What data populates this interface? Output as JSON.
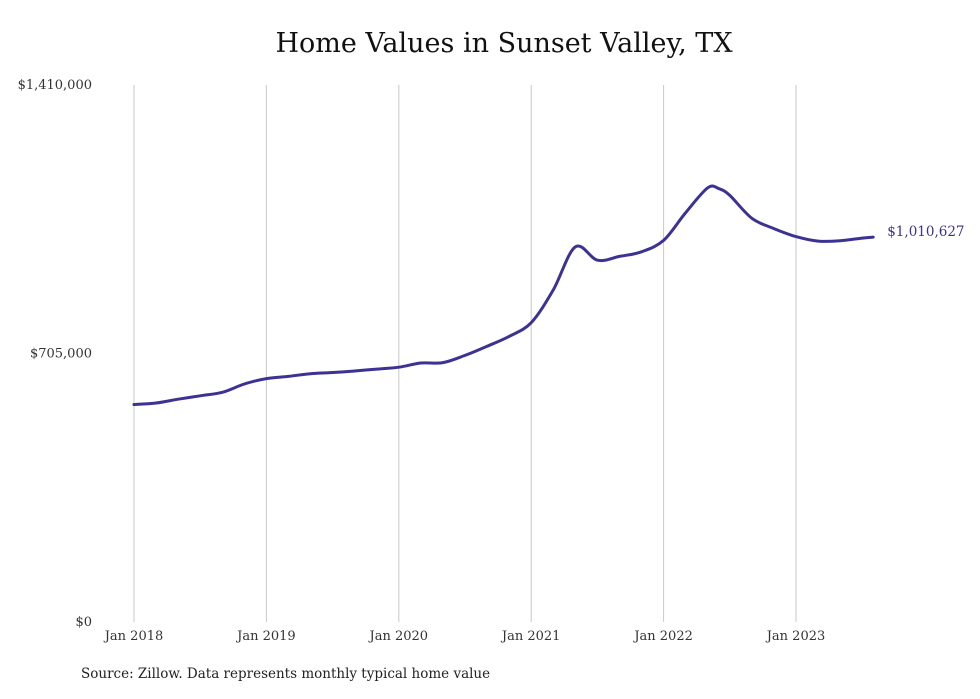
{
  "title": "Home Values in Sunset Valley, TX",
  "source": "Source: Zillow. Data represents monthly typical home value",
  "colors": {
    "line": "#3b3293",
    "grid": "#c8c8c8",
    "text": "#333333"
  },
  "chart_data": {
    "type": "line",
    "title": "Home Values in Sunset Valley, TX",
    "xlabel": "",
    "ylabel": "",
    "ylim": [
      0,
      1410000
    ],
    "y_ticks": [
      0,
      705000,
      1410000
    ],
    "y_tick_labels": [
      "$0",
      "$705,000",
      "$1,410,000"
    ],
    "x_tick_labels": [
      "Jan 2018",
      "Jan 2019",
      "Jan 2020",
      "Jan 2021",
      "Jan 2022",
      "Jan 2023"
    ],
    "x_ticks": [
      "2018-01",
      "2019-01",
      "2020-01",
      "2021-01",
      "2022-01",
      "2023-01"
    ],
    "grid": "vertical",
    "end_label": "$1,010,627",
    "series": [
      {
        "x": [
          "2018-01",
          "2018-03",
          "2018-05",
          "2018-07",
          "2018-09",
          "2018-11",
          "2019-01",
          "2019-03",
          "2019-05",
          "2019-07",
          "2019-09",
          "2019-11",
          "2020-01",
          "2020-03",
          "2020-05",
          "2020-07",
          "2020-09",
          "2020-11",
          "2021-01",
          "2021-03",
          "2021-05",
          "2021-07",
          "2021-09",
          "2021-11",
          "2022-01",
          "2022-03",
          "2022-05",
          "2022-06",
          "2022-07",
          "2022-09",
          "2022-11",
          "2023-01",
          "2023-03",
          "2023-05",
          "2023-07",
          "2023-08"
        ],
        "values": [
          571000,
          575000,
          585000,
          594000,
          603000,
          625000,
          639000,
          645000,
          652000,
          655000,
          659000,
          664000,
          669000,
          680000,
          681000,
          700000,
          724000,
          750000,
          786000,
          872000,
          985000,
          950000,
          960000,
          972000,
          1002000,
          1075000,
          1140000,
          1138000,
          1120000,
          1060000,
          1033000,
          1012000,
          1000000,
          1001000,
          1008000,
          1010627
        ]
      }
    ]
  }
}
